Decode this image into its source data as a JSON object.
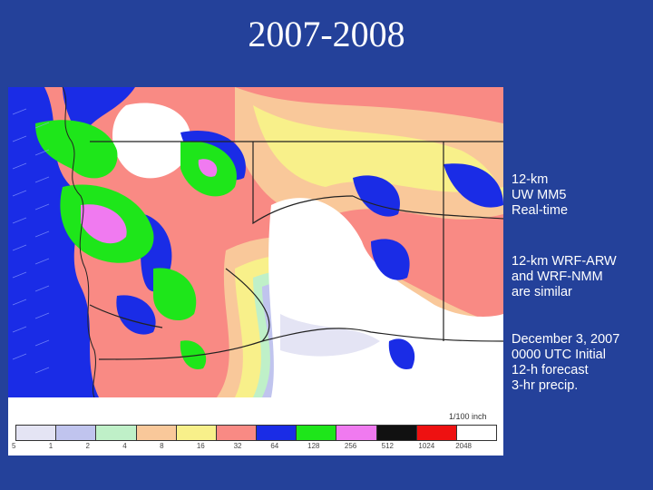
{
  "title": "2007-2008",
  "map": {
    "units_label": "1/100 inch",
    "legend": [
      {
        "label": "5",
        "color": "#e4e4f4"
      },
      {
        "label": "1",
        "color": "#c0c4ee"
      },
      {
        "label": "2",
        "color": "#bff0c8"
      },
      {
        "label": "4",
        "color": "#f9c89a"
      },
      {
        "label": "8",
        "color": "#f8f08a"
      },
      {
        "label": "16",
        "color": "#f98a84"
      },
      {
        "label": "32",
        "color": "#1a2ce6"
      },
      {
        "label": "64",
        "color": "#1ee61a"
      },
      {
        "label": "128",
        "color": "#f07af0"
      },
      {
        "label": "256",
        "color": "#111111"
      },
      {
        "label": "512",
        "color": "#ee1111"
      },
      {
        "label": "1024",
        "color": "#ffffff"
      },
      {
        "label": "2048",
        "color": "#ffffff"
      }
    ]
  },
  "notes": {
    "model": [
      "12-km",
      "UW MM5",
      "Real-time"
    ],
    "comparison": [
      "12-km WRF-ARW",
      "and WRF-NMM",
      "are similar"
    ],
    "forecast": [
      "December 3, 2007",
      "0000 UTC Initial",
      "12-h forecast",
      "3-hr precip."
    ]
  }
}
